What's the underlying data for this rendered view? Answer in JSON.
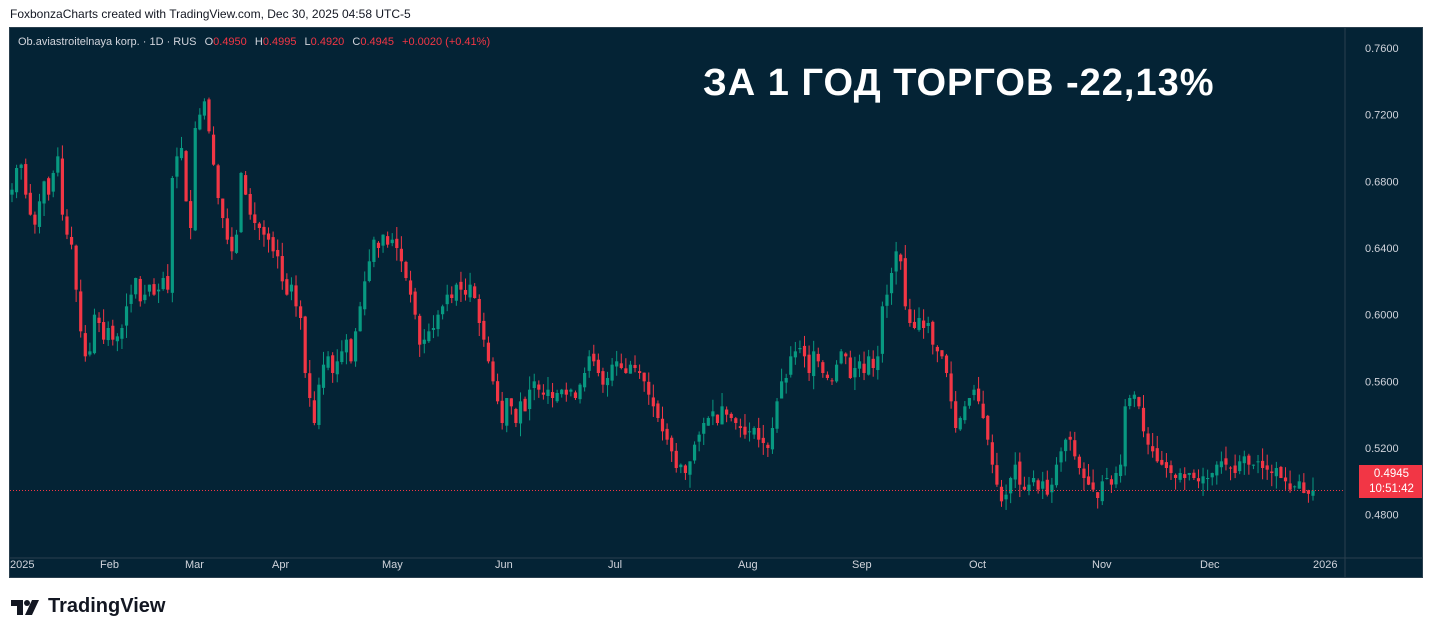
{
  "header": {
    "credit": "FoxbonzaCharts created with TradingView.com, Dec 30, 2025 04:58 UTC-5"
  },
  "legend": {
    "symbol": "Ob.aviastroitelnaya korp. · 1D · RUS",
    "open_label": "O",
    "open": "0.4950",
    "high_label": "H",
    "high": "0.4995",
    "low_label": "L",
    "low": "0.4920",
    "close_label": "C",
    "close": "0.4945",
    "change": "+0.0020 (+0.41%)"
  },
  "headline": "ЗА 1 ГОД ТОРГОВ -22,13%",
  "price_tag": {
    "price": "0.4945",
    "countdown": "10:51:42"
  },
  "footer": {
    "brand": "TradingView"
  },
  "colors": {
    "background": "#042335",
    "up": "#089981",
    "down": "#f23645",
    "text": "#d1d4dc",
    "headline": "#ffffff"
  },
  "chart_data": {
    "type": "candlestick",
    "title": "ЗА 1 ГОД ТОРГОВ -22,13%",
    "y_ticks": [
      "0.7600",
      "0.7200",
      "0.6800",
      "0.6400",
      "0.6000",
      "0.5600",
      "0.5200",
      "0.4800"
    ],
    "x_ticks": [
      "2025",
      "Feb",
      "Mar",
      "Apr",
      "May",
      "Jun",
      "Jul",
      "Aug",
      "Sep",
      "Oct",
      "Nov",
      "Dec",
      "2026"
    ],
    "ylim": [
      0.454,
      0.772
    ],
    "last_price": 0.4945,
    "grid": false,
    "series": [
      {
        "name": "Ob.aviastroitelnaya korp.",
        "closes": [
          0.675,
          0.688,
          0.69,
          0.672,
          0.66,
          0.654,
          0.668,
          0.68,
          0.672,
          0.685,
          0.695,
          0.66,
          0.648,
          0.642,
          0.615,
          0.59,
          0.575,
          0.578,
          0.6,
          0.595,
          0.585,
          0.592,
          0.585,
          0.587,
          0.592,
          0.605,
          0.612,
          0.622,
          0.608,
          0.612,
          0.618,
          0.612,
          0.615,
          0.622,
          0.615,
          0.682,
          0.695,
          0.7,
          0.668,
          0.652,
          0.712,
          0.72,
          0.728,
          0.71,
          0.69,
          0.67,
          0.658,
          0.645,
          0.638,
          0.648,
          0.685,
          0.672,
          0.66,
          0.655,
          0.652,
          0.648,
          0.645,
          0.638,
          0.635,
          0.62,
          0.612,
          0.618,
          0.605,
          0.598,
          0.565,
          0.55,
          0.535,
          0.558,
          0.57,
          0.575,
          0.565,
          0.572,
          0.578,
          0.585,
          0.572,
          0.59,
          0.605,
          0.62,
          0.632,
          0.645,
          0.64,
          0.648,
          0.642,
          0.645,
          0.64,
          0.632,
          0.622,
          0.612,
          0.6,
          0.582,
          0.585,
          0.59,
          0.592,
          0.6,
          0.605,
          0.612,
          0.61,
          0.618,
          0.615,
          0.612,
          0.618,
          0.61,
          0.595,
          0.585,
          0.572,
          0.56,
          0.548,
          0.535,
          0.55,
          0.545,
          0.535,
          0.548,
          0.542,
          0.555,
          0.56,
          0.555,
          0.552,
          0.555,
          0.55,
          0.553,
          0.555,
          0.552,
          0.555,
          0.55,
          0.558,
          0.565,
          0.575,
          0.572,
          0.565,
          0.558,
          0.562,
          0.57,
          0.572,
          0.568,
          0.565,
          0.57,
          0.568,
          0.565,
          0.56,
          0.552,
          0.545,
          0.538,
          0.53,
          0.525,
          0.518,
          0.508,
          0.51,
          0.505,
          0.512,
          0.522,
          0.528,
          0.535,
          0.538,
          0.542,
          0.535,
          0.545,
          0.54,
          0.538,
          0.535,
          0.532,
          0.528,
          0.53,
          0.532,
          0.525,
          0.523,
          0.52,
          0.532,
          0.548,
          0.56,
          0.562,
          0.575,
          0.578,
          0.58,
          0.575,
          0.565,
          0.578,
          0.572,
          0.565,
          0.562,
          0.56,
          0.57,
          0.578,
          0.575,
          0.562,
          0.568,
          0.572,
          0.565,
          0.575,
          0.568,
          0.575,
          0.605,
          0.612,
          0.625,
          0.638,
          0.632,
          0.605,
          0.595,
          0.592,
          0.598,
          0.592,
          0.595,
          0.582,
          0.578,
          0.575,
          0.565,
          0.548,
          0.532,
          0.538,
          0.545,
          0.55,
          0.555,
          0.548,
          0.538,
          0.525,
          0.51,
          0.498,
          0.488,
          0.492,
          0.502,
          0.51,
          0.498,
          0.495,
          0.498,
          0.502,
          0.495,
          0.5,
          0.492,
          0.498,
          0.51,
          0.518,
          0.525,
          0.525,
          0.515,
          0.508,
          0.502,
          0.498,
          0.495,
          0.49,
          0.5,
          0.502,
          0.498,
          0.505,
          0.51,
          0.545,
          0.55,
          0.552,
          0.545,
          0.53,
          0.522,
          0.518,
          0.512,
          0.51,
          0.508,
          0.505,
          0.502,
          0.505,
          0.502,
          0.505,
          0.502,
          0.5,
          0.503,
          0.502,
          0.505,
          0.51,
          0.512,
          0.51,
          0.508,
          0.505,
          0.512,
          0.515,
          0.51,
          0.51,
          0.512,
          0.508,
          0.507,
          0.505,
          0.508,
          0.502,
          0.5,
          0.495,
          0.497,
          0.5,
          0.493,
          0.4925,
          0.4945
        ]
      }
    ]
  }
}
